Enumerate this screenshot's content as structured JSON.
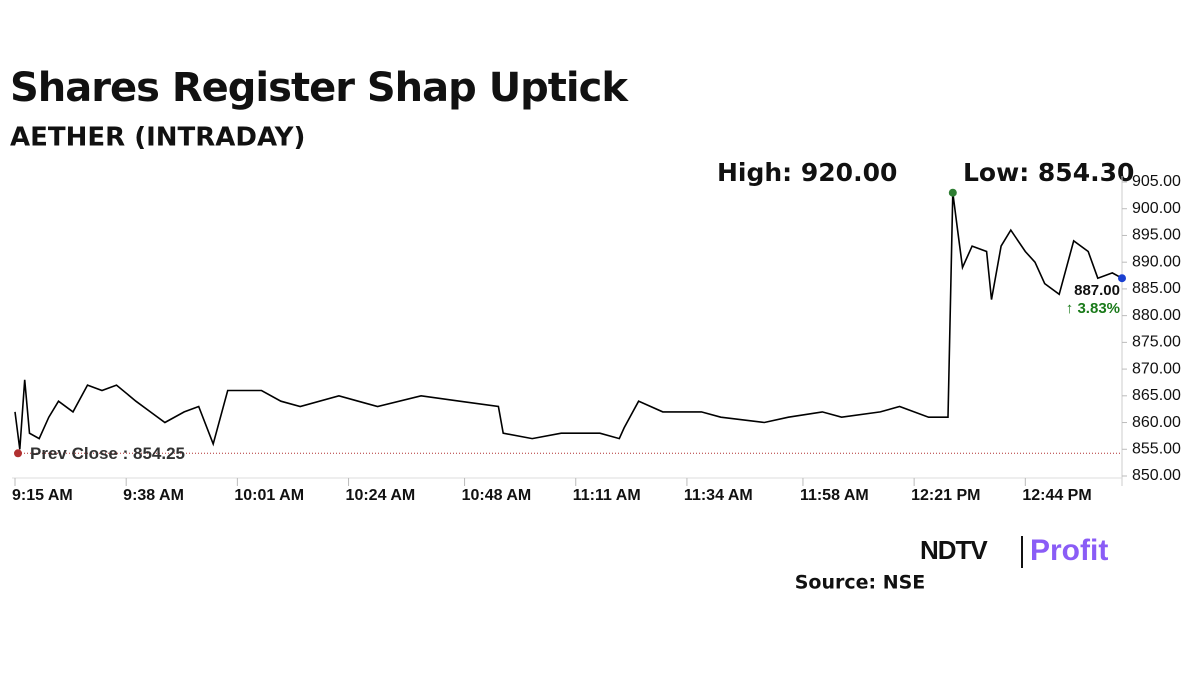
{
  "chart_data": {
    "type": "line",
    "title": "Shares Register Shap Uptick",
    "subtitle": "AETHER (INTRADAY)",
    "high_label": "High: 920.00",
    "low_label": "Low: 854.30",
    "prev_close": 854.25,
    "prev_close_label": "Prev Close : 854.25",
    "last_label": "887.00",
    "change_label": "↑ 3.83%",
    "source": "Source: NSE",
    "logo": [
      "NDTV",
      "Profit"
    ],
    "x": [
      "9:15 AM",
      "9:16 AM",
      "9:17 AM",
      "9:18 AM",
      "9:20 AM",
      "9:22 AM",
      "9:24 AM",
      "9:27 AM",
      "9:30 AM",
      "9:33 AM",
      "9:36 AM",
      "9:40 AM",
      "9:43 AM",
      "9:46 AM",
      "9:50 AM",
      "9:53 AM",
      "9:56 AM",
      "9:59 AM",
      "10:06 AM",
      "10:10 AM",
      "10:14 AM",
      "10:22 AM",
      "10:26 AM",
      "10:30 AM",
      "10:39 AM",
      "10:47 AM",
      "10:55 AM",
      "10:56 AM",
      "11:02 AM",
      "11:08 AM",
      "11:16 AM",
      "11:20 AM",
      "11:21 AM",
      "11:24 AM",
      "11:29 AM",
      "11:37 AM",
      "11:41 AM",
      "11:50 AM",
      "11:55 AM",
      "12:02 PM",
      "12:06 PM",
      "12:14 PM",
      "12:18 PM",
      "12:24 PM",
      "12:28 PM",
      "12:29 PM",
      "12:30 PM",
      "12:31 PM",
      "12:33 PM",
      "12:36 PM",
      "12:37 PM",
      "12:39 PM",
      "12:41 PM",
      "12:44 PM",
      "12:46 PM",
      "12:48 PM",
      "12:51 PM",
      "12:54 PM",
      "12:57 PM",
      "12:59 PM",
      "1:02 PM",
      "1:04 PM"
    ],
    "series": [
      {
        "name": "AETHER",
        "color": "#000000",
        "values": [
          862,
          855,
          868,
          858,
          857,
          861,
          864,
          862,
          867,
          866,
          867,
          864,
          862,
          860,
          862,
          863,
          856,
          866,
          866,
          864,
          863,
          865,
          864,
          863,
          865,
          864,
          863,
          858,
          857,
          858,
          858,
          857,
          859,
          864,
          862,
          862,
          861,
          860,
          861,
          862,
          861,
          862,
          863,
          861,
          861,
          903,
          896,
          889,
          893,
          892,
          883,
          893,
          896,
          892,
          890,
          886,
          884,
          894,
          892,
          887,
          888,
          887
        ]
      }
    ],
    "xlim": [
      "9:15 AM",
      "1:04 PM"
    ],
    "xticks": [
      "9:15 AM",
      "9:38 AM",
      "10:01 AM",
      "10:24 AM",
      "10:48 AM",
      "11:11 AM",
      "11:34 AM",
      "11:58 AM",
      "12:21 PM",
      "12:44 PM"
    ],
    "ylim": [
      850,
      905
    ],
    "yticks": [
      {
        "value": 850,
        "label": "850.00"
      },
      {
        "value": 855,
        "label": "855.00"
      },
      {
        "value": 860,
        "label": "860.00"
      },
      {
        "value": 865,
        "label": "865.00"
      },
      {
        "value": 870,
        "label": "870.00"
      },
      {
        "value": 875,
        "label": "875.00"
      },
      {
        "value": 880,
        "label": "880.00"
      },
      {
        "value": 885,
        "label": "885.00"
      },
      {
        "value": 890,
        "label": "890.00"
      },
      {
        "value": 895,
        "label": "895.00"
      },
      {
        "value": 900,
        "label": "900.00"
      },
      {
        "value": 905,
        "label": "905.00"
      }
    ]
  }
}
